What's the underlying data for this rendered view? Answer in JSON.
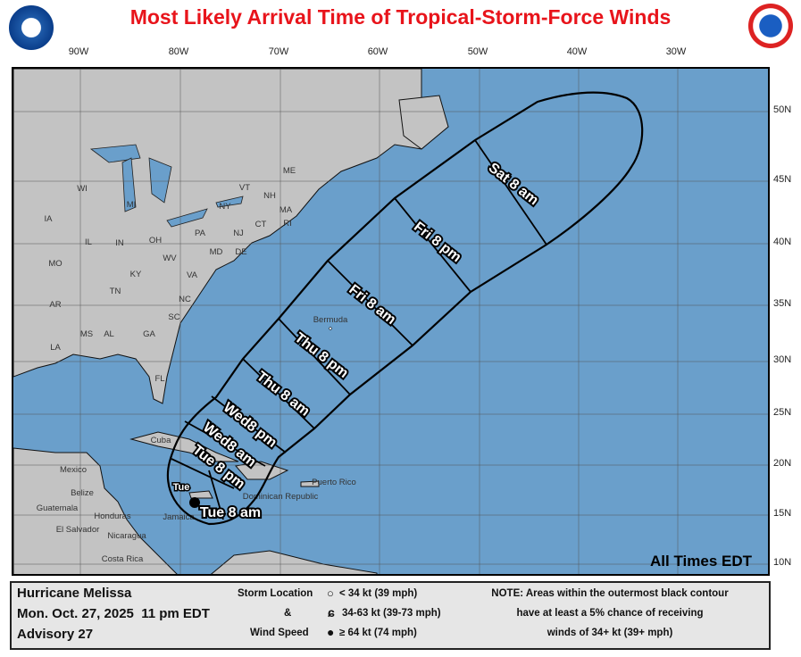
{
  "title": "Most Likely Arrival Time of Tropical-Storm-Force Winds",
  "logos": {
    "left": "NOAA",
    "right": "National Weather Service"
  },
  "longitudes": [
    "90W",
    "80W",
    "70W",
    "60W",
    "50W",
    "40W",
    "30W"
  ],
  "latitudes": [
    "50N",
    "45N",
    "40N",
    "35N",
    "30N",
    "25N",
    "20N",
    "15N",
    "10N"
  ],
  "place_labels": [
    "WI",
    "MI",
    "NY",
    "VT",
    "NH",
    "ME",
    "MA",
    "CT",
    "RI",
    "PA",
    "NJ",
    "IA",
    "IL",
    "IN",
    "OH",
    "MO",
    "KY",
    "WV",
    "VA",
    "MD",
    "DE",
    "TN",
    "NC",
    "AR",
    "MS",
    "AL",
    "GA",
    "SC",
    "LA",
    "FL",
    "Bermuda",
    "Cuba",
    "Mexico",
    "Belize",
    "Guatemala",
    "Honduras",
    "El Salvador",
    "Nicaragua",
    "Costa Rica",
    "Jamaica",
    "Dominican Republic",
    "Puerto Rico"
  ],
  "isochrones": [
    "Sat 8 am",
    "Fri 8 pm",
    "Fri 8 am",
    "Thu 8 pm",
    "Thu 8 am",
    "Wed8 pm",
    "Wed8 am",
    "Tue 8 pm",
    "Tue 8 am",
    "Tue"
  ],
  "all_times": "All Times EDT",
  "colors": {
    "ocean": "#6a9fcb",
    "land": "#c3c3c3",
    "title": "#e8141b"
  },
  "legend": {
    "storm_name": "Hurricane Melissa",
    "date": "Mon. Oct. 27, 2025  11 pm EDT",
    "advisory": "Advisory 27",
    "key_title_1": "Storm Location",
    "key_title_2": "&",
    "key_title_3": "Wind Speed",
    "key_1": "< 34 kt (39 mph)",
    "key_2": "34-63 kt (39-73 mph)",
    "key_3": "≥ 64 kt (74 mph)",
    "note_1": "NOTE: Areas within the outermost black contour",
    "note_2": "have at least a 5% chance of receiving",
    "note_3": "winds of 34+ kt (39+ mph)"
  }
}
